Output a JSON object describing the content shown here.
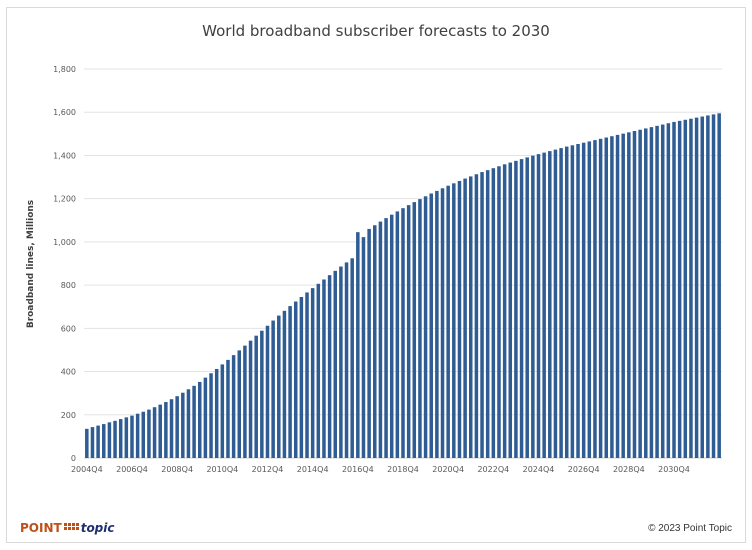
{
  "chart_data": {
    "type": "bar",
    "title": "World broadband subscriber forecasts to 2030",
    "xlabel": "",
    "ylabel": "Broadband lines, Millions",
    "ylim": [
      0,
      1800
    ],
    "yticks": [
      0,
      200,
      400,
      600,
      800,
      1000,
      1200,
      1400,
      1600,
      1800
    ],
    "ytick_labels": [
      "0",
      "200",
      "400",
      "600",
      "800",
      "1,000",
      "1,200",
      "1,400",
      "1,600",
      "1,800"
    ],
    "xtick_labels": [
      "2004Q4",
      "2006Q4",
      "2008Q4",
      "2010Q4",
      "2012Q4",
      "2014Q4",
      "2016Q4",
      "2018Q4",
      "2020Q4",
      "2022Q4",
      "2024Q4",
      "2026Q4",
      "2028Q4",
      "2030Q4"
    ],
    "grid": true,
    "bar_color": "#2e5c93",
    "categories_start": "2004Q4",
    "categories_end": "2030Q4",
    "values": [
      135,
      143,
      150,
      157,
      165,
      172,
      180,
      188,
      196,
      205,
      214,
      224,
      235,
      247,
      259,
      272,
      286,
      302,
      318,
      334,
      352,
      372,
      392,
      412,
      433,
      454,
      476,
      498,
      520,
      543,
      566,
      589,
      612,
      636,
      659,
      681,
      703,
      724,
      745,
      766,
      786,
      806,
      826,
      846,
      866,
      886,
      905,
      924,
      1045,
      1022,
      1060,
      1077,
      1094,
      1110,
      1126,
      1141,
      1156,
      1170,
      1184,
      1198,
      1211,
      1224,
      1236,
      1248,
      1260,
      1271,
      1282,
      1293,
      1303,
      1313,
      1323,
      1332,
      1341,
      1350,
      1359,
      1367,
      1375,
      1383,
      1391,
      1399,
      1406,
      1413,
      1420,
      1427,
      1434,
      1441,
      1447,
      1453,
      1459,
      1465,
      1471,
      1477,
      1483,
      1489,
      1495,
      1501,
      1507,
      1513,
      1519,
      1525,
      1531,
      1537,
      1543,
      1549,
      1555,
      1560,
      1565,
      1570,
      1575,
      1580,
      1585,
      1590,
      1595
    ]
  },
  "footer": {
    "logo_point": "POINT",
    "logo_topic": "topic",
    "copyright": "© 2023 Point Topic"
  }
}
